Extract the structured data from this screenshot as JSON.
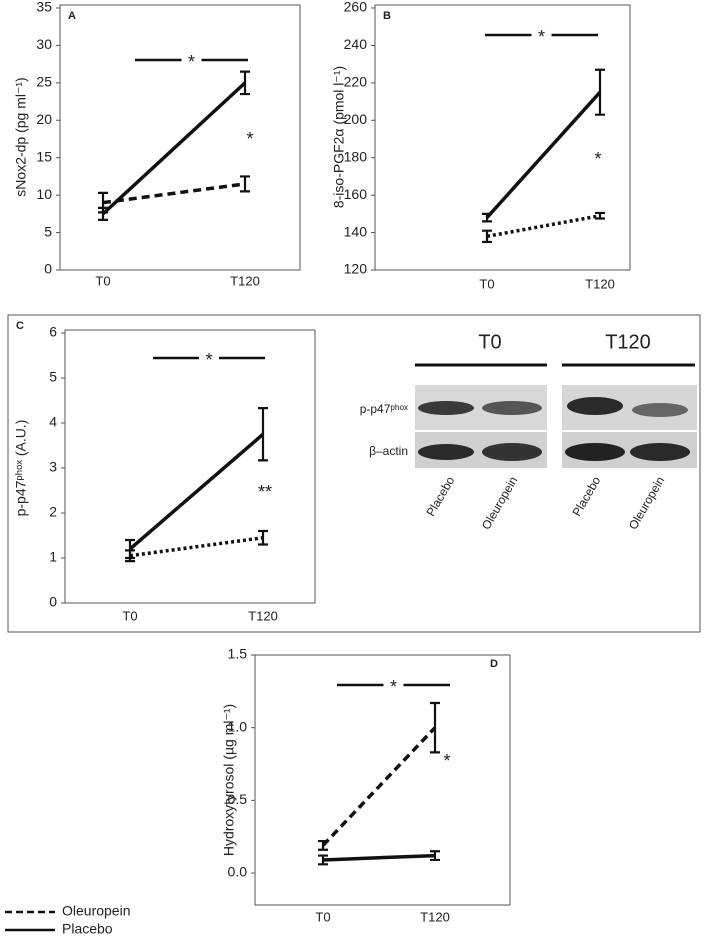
{
  "chart_data": [
    {
      "type": "line",
      "panel": "A",
      "ylabel": "sNox2-dp (pg ml⁻¹)",
      "categories": [
        "T0",
        "T120"
      ],
      "ylim": [
        0,
        35
      ],
      "yticks": [
        0,
        5,
        10,
        15,
        20,
        25,
        30,
        35
      ],
      "annotations": [
        "*",
        "*"
      ],
      "series": [
        {
          "name": "Oleuropein",
          "color": "#111",
          "style": "dashed",
          "values": [
            9,
            11.5
          ],
          "errors": [
            1.3,
            1
          ]
        },
        {
          "name": "Placebo",
          "color": "#111",
          "style": "solid",
          "values": [
            7.5,
            25
          ],
          "errors": [
            0.8,
            1.5
          ]
        }
      ]
    },
    {
      "type": "line",
      "panel": "B",
      "ylabel": "8-iso-PGF2α (pmol l⁻¹)",
      "categories": [
        "T0",
        "T120"
      ],
      "ylim": [
        120,
        260
      ],
      "yticks": [
        120,
        140,
        160,
        180,
        200,
        220,
        240,
        260
      ],
      "annotations": [
        "*",
        "*"
      ],
      "series": [
        {
          "name": "Oleuropein",
          "color": "#111",
          "style": "dotted",
          "values": [
            138,
            149
          ],
          "errors": [
            3,
            1.5
          ]
        },
        {
          "name": "Placebo",
          "color": "#111",
          "style": "solid",
          "values": [
            148,
            215
          ],
          "errors": [
            2,
            12
          ]
        }
      ]
    },
    {
      "type": "line",
      "panel": "C",
      "ylabel": "p-p47ᵖʰᵒˣ (A.U.)",
      "categories": [
        "T0",
        "T120"
      ],
      "ylim": [
        0,
        6
      ],
      "yticks": [
        0,
        1,
        2,
        3,
        4,
        5,
        6
      ],
      "annotations": [
        "*",
        "**"
      ],
      "series": [
        {
          "name": "Oleuropein",
          "color": "#111",
          "style": "dotted",
          "values": [
            1.05,
            1.45
          ],
          "errors": [
            0.12,
            0.15
          ]
        },
        {
          "name": "Placebo",
          "color": "#111",
          "style": "solid",
          "values": [
            1.2,
            3.75
          ],
          "errors": [
            0.2,
            0.58
          ]
        }
      ]
    },
    {
      "type": "line",
      "panel": "D",
      "ylabel": "Hydroxytyrosol (µg ml⁻¹)",
      "categories": [
        "T0",
        "T120"
      ],
      "ylim": [
        -0.22,
        1.5
      ],
      "yticks": [
        {
          "value": 0,
          "label": "0.0"
        },
        0.5,
        {
          "value": 1,
          "label": "1.0"
        },
        1.5
      ],
      "annotations": [
        "*",
        "*"
      ],
      "series": [
        {
          "name": "Oleuropein",
          "color": "#111",
          "style": "dashed",
          "values": [
            0.19,
            1.0
          ],
          "errors": [
            0.03,
            0.17
          ]
        },
        {
          "name": "Placebo",
          "color": "#111",
          "style": "solid",
          "values": [
            0.09,
            0.12
          ],
          "errors": [
            0.03,
            0.03
          ]
        }
      ]
    }
  ],
  "blot": {
    "groups": [
      "T0",
      "T120"
    ],
    "rows": [
      "p-p47ᵖʰᵒˣ",
      "β–actin"
    ],
    "lanes": [
      "Placebo",
      "Oleuropein",
      "Placebo",
      "Oleuropein"
    ]
  }
}
